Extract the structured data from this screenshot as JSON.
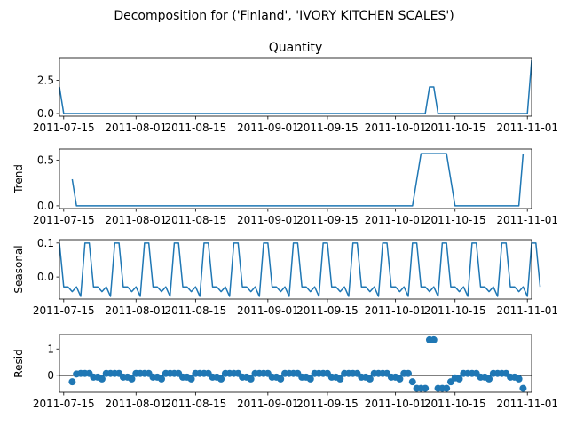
{
  "figure": {
    "suptitle": "Decomposition for ('Finland', 'IVORY KITCHEN SCALES')"
  },
  "colors": {
    "series": "#1f77b4",
    "axes": "#000000",
    "zero_line": "#000000"
  },
  "chart_data": [
    {
      "type": "line",
      "title": "Quantity",
      "ylabel": "",
      "x_start": "2011-07-14",
      "x_end": "2011-11-02",
      "xlim": [
        "2011-07-14",
        "2011-11-02"
      ],
      "ylim": [
        -0.2,
        4.2
      ],
      "yticks": [
        0.0,
        2.5
      ],
      "ytick_labels": [
        "0.0",
        "2.5"
      ],
      "xtick_labels": [
        "2011-07-15",
        "2011-08-01",
        "2011-08-15",
        "2011-09-01",
        "2011-09-15",
        "2011-10-01",
        "2011-10-15",
        "2011-11-01"
      ],
      "points": [
        [
          "2011-07-14",
          2
        ],
        [
          "2011-07-15",
          0
        ],
        [
          "2011-10-08",
          0
        ],
        [
          "2011-10-09",
          2
        ],
        [
          "2011-10-10",
          2
        ],
        [
          "2011-10-11",
          0
        ],
        [
          "2011-11-01",
          0
        ],
        [
          "2011-11-02",
          4
        ]
      ]
    },
    {
      "type": "line",
      "title": "",
      "ylabel": "Trend",
      "xlim": [
        "2011-07-14",
        "2011-11-02"
      ],
      "ylim": [
        -0.03,
        0.62
      ],
      "yticks": [
        0.0,
        0.5
      ],
      "ytick_labels": [
        "0.0",
        "0.5"
      ],
      "xtick_labels": [
        "2011-07-15",
        "2011-08-01",
        "2011-08-15",
        "2011-09-01",
        "2011-09-15",
        "2011-10-01",
        "2011-10-15",
        "2011-11-01"
      ],
      "points": [
        [
          "2011-07-17",
          0.29
        ],
        [
          "2011-07-18",
          0
        ],
        [
          "2011-10-05",
          0
        ],
        [
          "2011-10-07",
          0.57
        ],
        [
          "2011-10-13",
          0.57
        ],
        [
          "2011-10-15",
          0
        ],
        [
          "2011-10-30",
          0
        ],
        [
          "2011-10-31",
          0.57
        ]
      ]
    },
    {
      "type": "line",
      "title": "",
      "ylabel": "Seasonal",
      "xlim": [
        "2011-07-14",
        "2011-11-02"
      ],
      "ylim": [
        -0.065,
        0.11
      ],
      "yticks": [
        0.0,
        0.1
      ],
      "ytick_labels": [
        "0.0",
        "0.1"
      ],
      "xtick_labels": [
        "2011-07-15",
        "2011-08-01",
        "2011-08-15",
        "2011-09-01",
        "2011-09-15",
        "2011-10-01",
        "2011-10-15",
        "2011-11-01"
      ],
      "x_start": "2011-07-14",
      "period_pattern": [
        0.1,
        -0.029,
        -0.029,
        -0.043,
        -0.029,
        -0.057,
        0.1
      ],
      "tail": [
        0.1,
        -0.029
      ]
    },
    {
      "type": "scatter",
      "title": "",
      "ylabel": "Resid",
      "xlim": [
        "2011-07-14",
        "2011-11-02"
      ],
      "ylim": [
        -0.65,
        1.55
      ],
      "yticks": [
        0,
        1
      ],
      "ytick_labels": [
        "0",
        "1"
      ],
      "xtick_labels": [
        "2011-07-15",
        "2011-08-01",
        "2011-08-15",
        "2011-09-01",
        "2011-09-15",
        "2011-10-01",
        "2011-10-15",
        "2011-11-01"
      ],
      "zero_line": true,
      "x_start": "2011-07-17",
      "period_pattern": [
        -0.14,
        0.07,
        0.07,
        0.07,
        0.07,
        -0.07,
        -0.07
      ],
      "overrides": [
        {
          "date": "2011-07-17",
          "value": -0.25
        },
        {
          "date": "2011-07-18",
          "value": 0.05
        },
        {
          "date": "2011-10-05",
          "value": -0.25
        },
        {
          "date": "2011-10-06",
          "value": -0.5
        },
        {
          "date": "2011-10-07",
          "value": -0.5
        },
        {
          "date": "2011-10-08",
          "value": -0.5
        },
        {
          "date": "2011-10-09",
          "value": 1.35
        },
        {
          "date": "2011-10-10",
          "value": 1.35
        },
        {
          "date": "2011-10-11",
          "value": -0.5
        },
        {
          "date": "2011-10-12",
          "value": -0.5
        },
        {
          "date": "2011-10-13",
          "value": -0.5
        },
        {
          "date": "2011-10-14",
          "value": -0.25
        },
        {
          "date": "2011-10-15",
          "value": -0.1
        },
        {
          "date": "2011-10-31",
          "value": -0.5
        }
      ],
      "x_end_points": "2011-10-31"
    }
  ]
}
